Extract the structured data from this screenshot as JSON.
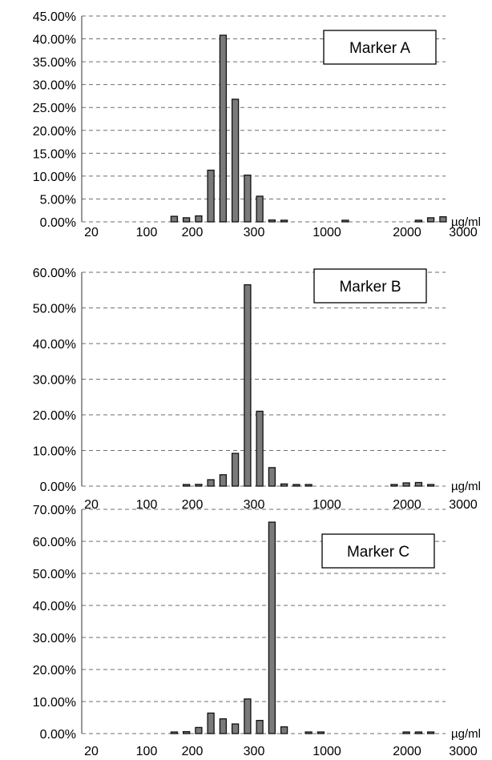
{
  "chart_data": [
    {
      "type": "bar",
      "annotation": "Marker A",
      "unit": "µg/ml",
      "ylim": [
        0,
        45
      ],
      "y_ticks": [
        "0.00%",
        "5.00%",
        "10.00%",
        "15.00%",
        "20.00%",
        "25.00%",
        "30.00%",
        "35.00%",
        "40.00%",
        "45.00%"
      ],
      "x_tick_labels": [
        "20",
        "100",
        "200",
        "300",
        "1000",
        "2000",
        "3000"
      ],
      "grid": true,
      "values": [
        0,
        0,
        0,
        0,
        0,
        0,
        0,
        1.2,
        0.9,
        1.3,
        11.3,
        40.8,
        26.8,
        10.2,
        5.6,
        0.4,
        0.3,
        0,
        0,
        0,
        0,
        0.3,
        0,
        0,
        0,
        0,
        0,
        0.2,
        0.9,
        1.1
      ]
    },
    {
      "type": "bar",
      "annotation": "Marker B",
      "unit": "µg/ml",
      "ylim": [
        0,
        60
      ],
      "y_ticks": [
        "0.00%",
        "10.00%",
        "20.00%",
        "30.00%",
        "40.00%",
        "50.00%",
        "60.00%"
      ],
      "x_tick_labels": [
        "20",
        "100",
        "200",
        "300",
        "1000",
        "2000",
        "3000"
      ],
      "grid": true,
      "values": [
        0,
        0,
        0,
        0,
        0,
        0,
        0,
        0,
        0.4,
        0.5,
        1.8,
        3.2,
        9.2,
        56.5,
        21.0,
        5.2,
        0.6,
        0.3,
        0.3,
        0,
        0,
        0,
        0,
        0,
        0,
        0.2,
        0.9,
        1.0,
        0.4,
        0
      ]
    },
    {
      "type": "bar",
      "annotation": "Marker C",
      "unit": "µg/ml",
      "ylim": [
        0,
        70
      ],
      "y_ticks": [
        "0.00%",
        "10.00%",
        "20.00%",
        "30.00%",
        "40.00%",
        "50.00%",
        "60.00%",
        "70.00%"
      ],
      "x_tick_labels": [
        "20",
        "100",
        "200",
        "300",
        "1000",
        "2000",
        "3000"
      ],
      "grid": true,
      "values": [
        0,
        0,
        0,
        0,
        0,
        0,
        0,
        0.2,
        0.6,
        1.9,
        6.4,
        4.6,
        3.0,
        10.8,
        4.1,
        66.0,
        2.1,
        0,
        0.1,
        0.1,
        0,
        0,
        0,
        0,
        0,
        0,
        0.1,
        0.2,
        0.4,
        0
      ]
    }
  ]
}
